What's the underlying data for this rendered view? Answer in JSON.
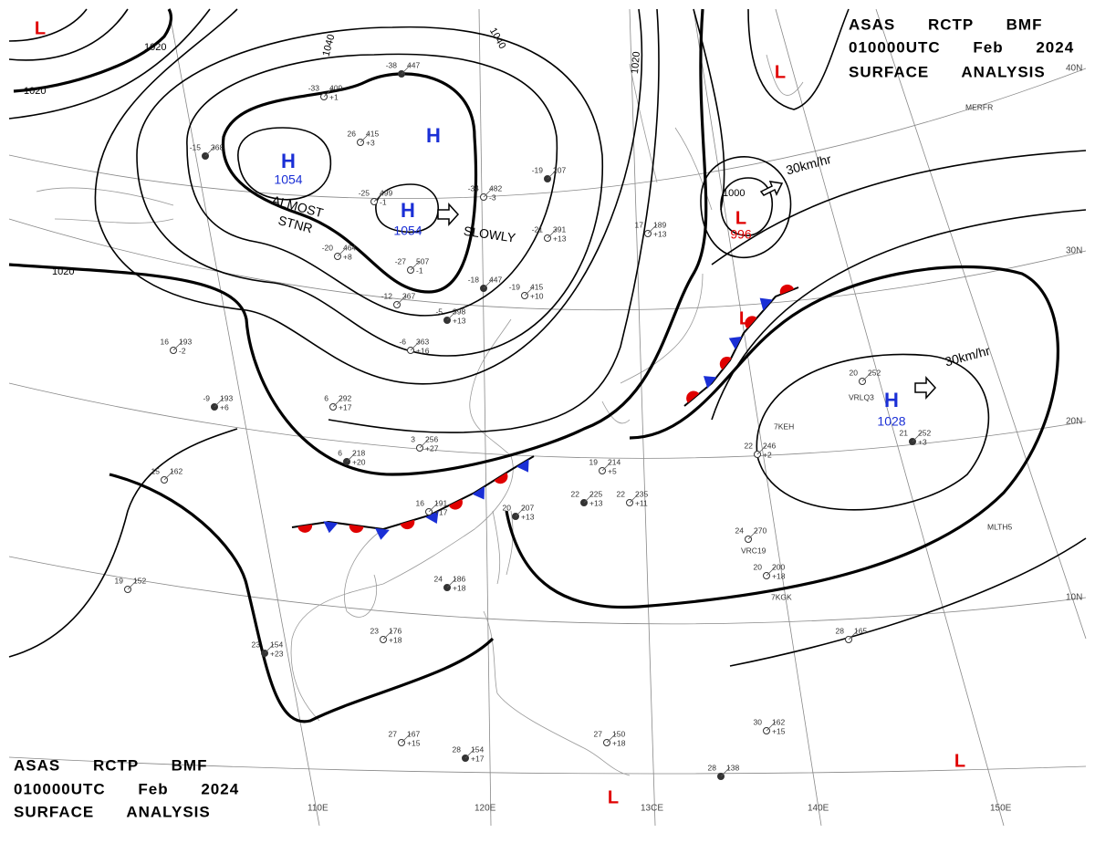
{
  "header_top": {
    "line1": "ASAS RCTP BMF",
    "line2": "010000UTC Feb 2024",
    "line3": "SURFACE ANALYSIS"
  },
  "header_bottom": {
    "line1": "ASAS RCTP BMF",
    "line2": "010000UTC Feb 2024",
    "line3": "SURFACE ANALYSIS"
  },
  "systems": [
    {
      "letter": "L"
    },
    {
      "letter": "H",
      "pressure": 1054
    },
    {
      "letter": "H"
    },
    {
      "letter": "H",
      "pressure": 1054
    },
    {
      "letter": "L"
    },
    {
      "letter": "L",
      "pressure": 996
    },
    {
      "letter": "L"
    },
    {
      "letter": "H",
      "pressure": 1028
    },
    {
      "letter": "L"
    },
    {
      "letter": "L"
    }
  ],
  "isobar_labels": [
    1020,
    1020,
    1040,
    1040,
    1020,
    1020,
    1000
  ],
  "annotations": [
    "ALMOST",
    "STNR",
    "SLOWLY",
    "30km/hr",
    "30km/hr"
  ],
  "latitudes": [
    "40N",
    "30N",
    "20N",
    "10N"
  ],
  "longitudes": [
    "110E",
    "120E",
    "13CE",
    "140E",
    "150E"
  ],
  "ship_ids": [
    "MERFR",
    "VRLQ3",
    "7KEH",
    "MLTH5",
    "VRC19",
    "7KGK"
  ],
  "stations": [
    {
      "temp": "-38",
      "pressure": "447"
    },
    {
      "temp": "-33",
      "pressure": "409",
      "tendency": "+1"
    },
    {
      "temp": "26",
      "pressure": "415",
      "tendency": "+3"
    },
    {
      "temp": "-15",
      "pressure": "368"
    },
    {
      "temp": "-25",
      "pressure": "499",
      "tendency": "-1"
    },
    {
      "temp": "-34",
      "pressure": "482",
      "tendency": "-3"
    },
    {
      "temp": "-19",
      "pressure": "207"
    },
    {
      "temp": "-20",
      "pressure": "464",
      "tendency": "+8"
    },
    {
      "temp": "-27",
      "pressure": "507",
      "tendency": "-1"
    },
    {
      "temp": "-18",
      "pressure": "447"
    },
    {
      "temp": "-19",
      "pressure": "415",
      "tendency": "+10"
    },
    {
      "temp": "-12",
      "pressure": "367"
    },
    {
      "temp": "-5",
      "pressure": "398",
      "tendency": "+13"
    },
    {
      "temp": "16",
      "pressure": "193",
      "tendency": "-2"
    },
    {
      "temp": "-6",
      "pressure": "363",
      "tendency": "+16"
    },
    {
      "temp": "-9",
      "pressure": "193",
      "tendency": "+6"
    },
    {
      "temp": "6",
      "pressure": "292",
      "tendency": "+17"
    },
    {
      "temp": "3",
      "pressure": "256",
      "tendency": "+27"
    },
    {
      "temp": "6",
      "pressure": "218",
      "tendency": "+20"
    },
    {
      "temp": "15",
      "pressure": "162"
    },
    {
      "temp": "19",
      "pressure": "214",
      "tendency": "+5"
    },
    {
      "temp": "22",
      "pressure": "225",
      "tendency": "+13"
    },
    {
      "temp": "22",
      "pressure": "235",
      "tendency": "+11"
    },
    {
      "temp": "16",
      "pressure": "191",
      "tendency": "+17"
    },
    {
      "temp": "20",
      "pressure": "207",
      "tendency": "+13"
    },
    {
      "temp": "24",
      "pressure": "270"
    },
    {
      "temp": "20",
      "pressure": "200",
      "tendency": "+18"
    },
    {
      "temp": "24",
      "pressure": "186",
      "tendency": "+18"
    },
    {
      "temp": "19",
      "pressure": "152"
    },
    {
      "temp": "23",
      "pressure": "176",
      "tendency": "+18"
    },
    {
      "temp": "23",
      "pressure": "154",
      "tendency": "+23"
    },
    {
      "temp": "28",
      "pressure": "165"
    },
    {
      "temp": "20",
      "pressure": "252"
    },
    {
      "temp": "21",
      "pressure": "252",
      "tendency": "+3"
    },
    {
      "temp": "22",
      "pressure": "246",
      "tendency": "+2"
    },
    {
      "temp": "27",
      "pressure": "167",
      "tendency": "+15"
    },
    {
      "temp": "28",
      "pressure": "154",
      "tendency": "+17"
    },
    {
      "temp": "27",
      "pressure": "150",
      "tendency": "+18"
    },
    {
      "temp": "30",
      "pressure": "162",
      "tendency": "+15"
    },
    {
      "temp": "28",
      "pressure": "138"
    },
    {
      "temp": "-21",
      "pressure": "391",
      "tendency": "+13"
    },
    {
      "temp": "17",
      "pressure": "189",
      "tendency": "+13"
    }
  ]
}
